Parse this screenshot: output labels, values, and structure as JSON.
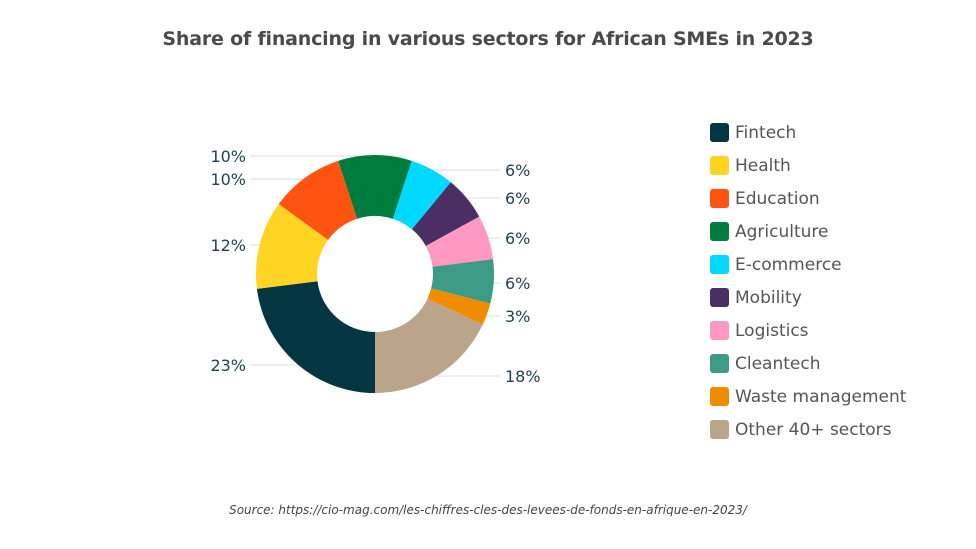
{
  "chart_data": {
    "type": "pie",
    "subtype": "donut",
    "title": "Share of financing in various sectors for African SMEs in 2023",
    "categories": [
      "Fintech",
      "Health",
      "Education",
      "Agriculture",
      "E-commerce",
      "Mobility",
      "Logistics",
      "Cleantech",
      "Waste management",
      "Other 40+ sectors"
    ],
    "values": [
      23,
      12,
      10,
      10,
      6,
      6,
      6,
      6,
      3,
      18
    ],
    "labels": [
      "23%",
      "12%",
      "10%",
      "10%",
      "6%",
      "6%",
      "6%",
      "6%",
      "3%",
      "18%"
    ],
    "colors": [
      "#033641",
      "#FFD423",
      "#FF5411",
      "#007D3E",
      "#00D9FF",
      "#4A2F65",
      "#FF99C2",
      "#3C9A87",
      "#F08C00",
      "#BBA58A"
    ],
    "legend_position": "right",
    "source": "Source: https://cio-mag.com/les-chiffres-cles-des-levees-de-fonds-en-afrique-en-2023/"
  }
}
